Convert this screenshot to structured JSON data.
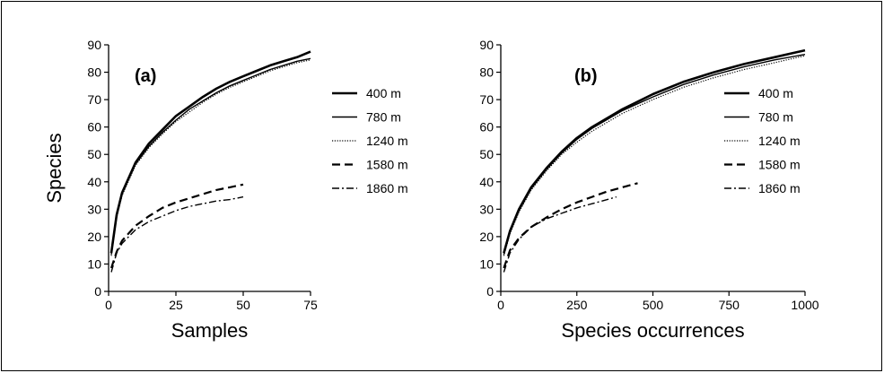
{
  "chart_data": [
    {
      "type": "line",
      "panel_label": "(a)",
      "xlabel": "Samples",
      "ylabel": "Species",
      "xlim": [
        0,
        75
      ],
      "ylim": [
        0,
        90
      ],
      "xticks": [
        0,
        25,
        50,
        75
      ],
      "yticks": [
        0,
        10,
        20,
        30,
        40,
        50,
        60,
        70,
        80,
        90
      ],
      "legend_position": "right",
      "grid": false,
      "series": [
        {
          "name": "400 m",
          "style": "solid-thick",
          "x": [
            1,
            3,
            5,
            10,
            15,
            20,
            25,
            30,
            35,
            40,
            45,
            50,
            55,
            60,
            65,
            70,
            75
          ],
          "y": [
            14,
            28,
            36,
            47,
            54,
            59,
            64,
            67.5,
            71,
            74,
            76.5,
            78.5,
            80.5,
            82.5,
            84,
            85.5,
            87.5
          ]
        },
        {
          "name": "780 m",
          "style": "solid-thin",
          "x": [
            1,
            3,
            5,
            10,
            15,
            20,
            25,
            30,
            35,
            40,
            45,
            50,
            55,
            60,
            65,
            70,
            75
          ],
          "y": [
            13.5,
            27.5,
            35.5,
            46.5,
            53,
            58,
            62.5,
            66.5,
            69.5,
            72.5,
            75,
            77,
            79,
            81,
            82.5,
            84,
            85
          ]
        },
        {
          "name": "1240 m",
          "style": "dotted",
          "x": [
            1,
            3,
            5,
            10,
            15,
            20,
            25,
            30,
            35,
            40,
            45,
            50,
            55,
            60,
            65,
            70,
            75
          ],
          "y": [
            13,
            27,
            35,
            46,
            52.5,
            57.5,
            62,
            65.5,
            69,
            72,
            74.5,
            76.5,
            78.5,
            80.5,
            82,
            83.5,
            84.5
          ]
        },
        {
          "name": "1580 m",
          "style": "dashed",
          "x": [
            1,
            3,
            5,
            10,
            15,
            20,
            25,
            30,
            35,
            40,
            45,
            50
          ],
          "y": [
            8.5,
            14.5,
            18.5,
            24,
            27.5,
            30.5,
            32.5,
            34,
            35.5,
            37,
            38,
            39
          ]
        },
        {
          "name": "1860 m",
          "style": "dash-dot",
          "x": [
            1,
            3,
            5,
            10,
            15,
            20,
            25,
            30,
            35,
            40,
            45,
            50
          ],
          "y": [
            7,
            14,
            17.5,
            22.5,
            25.5,
            27.5,
            29.5,
            31,
            32,
            33,
            33.5,
            34.5
          ]
        }
      ]
    },
    {
      "type": "line",
      "panel_label": "(b)",
      "xlabel": "Species occurrences",
      "ylabel": "",
      "xlim": [
        0,
        1000
      ],
      "ylim": [
        0,
        90
      ],
      "xticks": [
        0,
        250,
        500,
        750,
        1000
      ],
      "yticks": [
        0,
        10,
        20,
        30,
        40,
        50,
        60,
        70,
        80,
        90
      ],
      "legend_position": "right",
      "grid": false,
      "series": [
        {
          "name": "400 m",
          "style": "solid-thick",
          "x": [
            10,
            30,
            60,
            100,
            150,
            200,
            250,
            300,
            400,
            500,
            600,
            700,
            800,
            900,
            1000
          ],
          "y": [
            14,
            22,
            30,
            38,
            45,
            51,
            56,
            60,
            66.5,
            72,
            76.5,
            80,
            83,
            85.5,
            88
          ]
        },
        {
          "name": "780 m",
          "style": "solid-thin",
          "x": [
            10,
            30,
            60,
            100,
            150,
            200,
            250,
            300,
            400,
            500,
            600,
            700,
            800,
            900,
            1000
          ],
          "y": [
            13.5,
            21.5,
            29.5,
            37.5,
            44.5,
            50.5,
            55.5,
            59.5,
            66,
            71,
            75.5,
            79,
            82,
            84.5,
            86.5
          ]
        },
        {
          "name": "1240 m",
          "style": "dotted",
          "x": [
            10,
            30,
            60,
            100,
            150,
            200,
            250,
            300,
            400,
            500,
            600,
            700,
            800,
            900,
            1000
          ],
          "y": [
            13,
            21,
            29,
            37,
            44,
            50,
            54.5,
            58.5,
            65,
            70,
            74.5,
            78,
            81,
            83.5,
            86
          ]
        },
        {
          "name": "1580 m",
          "style": "dashed",
          "x": [
            10,
            30,
            60,
            100,
            150,
            200,
            250,
            300,
            350,
            400,
            450
          ],
          "y": [
            8.5,
            15,
            19.5,
            23.5,
            27,
            30,
            32.5,
            34.5,
            36.5,
            38,
            39.5
          ]
        },
        {
          "name": "1860 m",
          "style": "dash-dot",
          "x": [
            10,
            30,
            60,
            100,
            150,
            200,
            250,
            300,
            350,
            380
          ],
          "y": [
            7,
            14,
            19,
            23.5,
            26.5,
            28.5,
            30.5,
            32,
            33.5,
            34.5
          ]
        }
      ]
    }
  ]
}
